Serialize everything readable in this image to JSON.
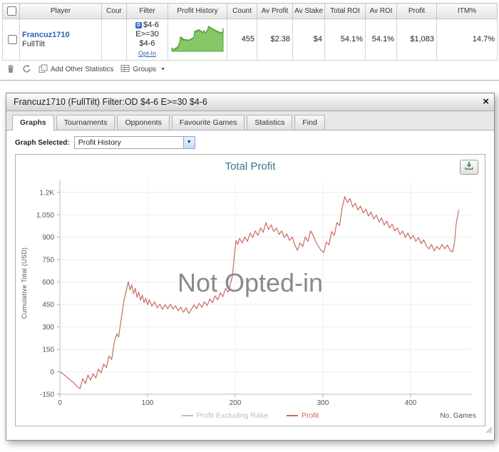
{
  "table": {
    "columns": [
      "",
      "Player",
      "Cour",
      "Filter",
      "Profit History",
      "Count",
      "Av Profit",
      "Av Stake",
      "Total ROI",
      "Av ROI",
      "Profit",
      "ITM%"
    ],
    "row": {
      "player_name": "Francuz1710",
      "site": "FullTilt",
      "filter_badge": "D",
      "filter_line1": "$4-6",
      "filter_line2": "E>=30",
      "filter_line3": "$4-6",
      "filter_link": "Opt-In",
      "count": "455",
      "av_profit": "$2.38",
      "av_stake": "$4",
      "total_roi": "54.1%",
      "av_roi": "54.1%",
      "profit": "$1,083",
      "itm": "14.7%"
    },
    "toolbar": {
      "add_other_statistics": "Add Other Statistics",
      "groups": "Groups"
    }
  },
  "popup": {
    "title": "Francuz1710 (FullTilt) Filter:OD $4-6 E>=30 $4-6",
    "tabs": [
      "Graphs",
      "Tournaments",
      "Opponents",
      "Favourite Games",
      "Statistics",
      "Find"
    ],
    "active_tab": "Graphs",
    "graph_selected_label": "Graph Selected:",
    "graph_selected_value": "Profit History",
    "watermark": "Not Opted-in"
  },
  "colors": {
    "player_link": "#2b5fad",
    "chart_title": "#35788c",
    "profit_line": "#c96a5f",
    "rake_legend": "#bdbdbd",
    "sparkline_fill": "#86c767",
    "sparkline_stroke": "#55a23a",
    "watermark": "#8a8a8a"
  },
  "chart_data": {
    "type": "line",
    "title": "Total Profit",
    "xlabel": "No. Games",
    "ylabel": "Cumulative Total (USD)",
    "xlim": [
      0,
      470
    ],
    "ylim": [
      -150,
      1280
    ],
    "xticks": [
      0,
      100,
      200,
      300,
      400
    ],
    "yticks": [
      "-150",
      "0",
      "150",
      "300",
      "450",
      "600",
      "750",
      "900",
      "1,050",
      "1.2K"
    ],
    "ytick_values": [
      -150,
      0,
      150,
      300,
      450,
      600,
      750,
      900,
      1050,
      1200
    ],
    "grid": true,
    "legend_position": "bottom",
    "legend": [
      {
        "name": "Profit Excluding Rake",
        "color": "#bdbdbd"
      },
      {
        "name": "Profit",
        "color": "#c96a5f"
      }
    ],
    "series": [
      {
        "name": "Profit",
        "color": "#c96a5f",
        "points": [
          [
            0,
            0
          ],
          [
            4,
            -15
          ],
          [
            8,
            -35
          ],
          [
            12,
            -55
          ],
          [
            16,
            -75
          ],
          [
            20,
            -100
          ],
          [
            23,
            -112
          ],
          [
            26,
            -45
          ],
          [
            29,
            -78
          ],
          [
            32,
            -22
          ],
          [
            35,
            -55
          ],
          [
            38,
            -12
          ],
          [
            41,
            -42
          ],
          [
            44,
            18
          ],
          [
            47,
            -8
          ],
          [
            50,
            52
          ],
          [
            53,
            28
          ],
          [
            56,
            105
          ],
          [
            59,
            82
          ],
          [
            62,
            195
          ],
          [
            65,
            255
          ],
          [
            67,
            232
          ],
          [
            70,
            355
          ],
          [
            73,
            475
          ],
          [
            76,
            550
          ],
          [
            78,
            602
          ],
          [
            80,
            548
          ],
          [
            82,
            582
          ],
          [
            84,
            522
          ],
          [
            86,
            558
          ],
          [
            88,
            498
          ],
          [
            90,
            532
          ],
          [
            92,
            478
          ],
          [
            94,
            512
          ],
          [
            96,
            462
          ],
          [
            98,
            492
          ],
          [
            100,
            448
          ],
          [
            102,
            482
          ],
          [
            105,
            438
          ],
          [
            108,
            468
          ],
          [
            111,
            428
          ],
          [
            114,
            452
          ],
          [
            117,
            418
          ],
          [
            120,
            448
          ],
          [
            123,
            422
          ],
          [
            126,
            452
          ],
          [
            129,
            418
          ],
          [
            132,
            442
          ],
          [
            135,
            408
          ],
          [
            138,
            432
          ],
          [
            141,
            398
          ],
          [
            144,
            428
          ],
          [
            147,
            390
          ],
          [
            150,
            418
          ],
          [
            153,
            448
          ],
          [
            156,
            422
          ],
          [
            159,
            458
          ],
          [
            162,
            432
          ],
          [
            165,
            468
          ],
          [
            168,
            442
          ],
          [
            171,
            488
          ],
          [
            174,
            462
          ],
          [
            177,
            508
          ],
          [
            180,
            482
          ],
          [
            183,
            528
          ],
          [
            186,
            502
          ],
          [
            189,
            558
          ],
          [
            192,
            532
          ],
          [
            195,
            598
          ],
          [
            197,
            648
          ],
          [
            199,
            778
          ],
          [
            201,
            878
          ],
          [
            203,
            852
          ],
          [
            205,
            892
          ],
          [
            208,
            862
          ],
          [
            211,
            902
          ],
          [
            214,
            872
          ],
          [
            217,
            928
          ],
          [
            220,
            898
          ],
          [
            223,
            942
          ],
          [
            226,
            912
          ],
          [
            229,
            962
          ],
          [
            232,
            932
          ],
          [
            235,
            998
          ],
          [
            238,
            952
          ],
          [
            241,
            982
          ],
          [
            244,
            938
          ],
          [
            247,
            962
          ],
          [
            250,
            918
          ],
          [
            253,
            942
          ],
          [
            256,
            898
          ],
          [
            259,
            922
          ],
          [
            262,
            878
          ],
          [
            265,
            902
          ],
          [
            268,
            848
          ],
          [
            271,
            812
          ],
          [
            274,
            862
          ],
          [
            277,
            838
          ],
          [
            280,
            902
          ],
          [
            283,
            872
          ],
          [
            286,
            942
          ],
          [
            289,
            912
          ],
          [
            292,
            868
          ],
          [
            295,
            838
          ],
          [
            298,
            812
          ],
          [
            301,
            798
          ],
          [
            304,
            868
          ],
          [
            307,
            848
          ],
          [
            310,
            938
          ],
          [
            313,
            912
          ],
          [
            316,
            998
          ],
          [
            319,
            978
          ],
          [
            322,
            1098
          ],
          [
            325,
            1172
          ],
          [
            328,
            1132
          ],
          [
            331,
            1158
          ],
          [
            334,
            1102
          ],
          [
            337,
            1128
          ],
          [
            340,
            1082
          ],
          [
            343,
            1108
          ],
          [
            346,
            1062
          ],
          [
            349,
            1088
          ],
          [
            352,
            1042
          ],
          [
            355,
            1068
          ],
          [
            358,
            1022
          ],
          [
            361,
            1048
          ],
          [
            364,
            1002
          ],
          [
            367,
            1028
          ],
          [
            370,
            982
          ],
          [
            373,
            1008
          ],
          [
            376,
            962
          ],
          [
            379,
            988
          ],
          [
            382,
            942
          ],
          [
            385,
            962
          ],
          [
            388,
            918
          ],
          [
            391,
            942
          ],
          [
            394,
            898
          ],
          [
            397,
            928
          ],
          [
            400,
            888
          ],
          [
            403,
            912
          ],
          [
            406,
            872
          ],
          [
            409,
            898
          ],
          [
            412,
            858
          ],
          [
            415,
            882
          ],
          [
            418,
            842
          ],
          [
            421,
            822
          ],
          [
            424,
            852
          ],
          [
            427,
            808
          ],
          [
            430,
            838
          ],
          [
            433,
            818
          ],
          [
            436,
            852
          ],
          [
            439,
            822
          ],
          [
            442,
            848
          ],
          [
            445,
            812
          ],
          [
            448,
            802
          ],
          [
            450,
            858
          ],
          [
            452,
            988
          ],
          [
            455,
            1083
          ]
        ]
      }
    ]
  }
}
